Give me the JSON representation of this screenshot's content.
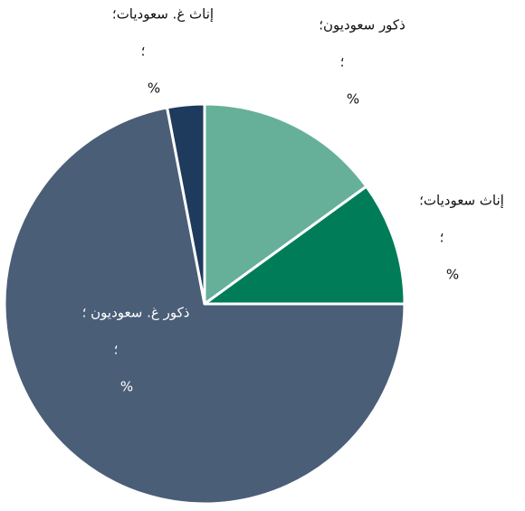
{
  "chart_data": {
    "type": "pie",
    "categories": [
      "ذكور سعوديون؛",
      "إناث سعوديات؛",
      "ذكور غ. سعوديون ؛",
      "إناث غ. سعوديات؛"
    ],
    "values": [
      15,
      10,
      72,
      3
    ],
    "colors": [
      "#66b09a",
      "#007c58",
      "#4a5e78",
      "#1e3a5c"
    ],
    "label_lines": [
      [
        "؛",
        "%"
      ],
      [
        "؛",
        "%"
      ],
      [
        "؛",
        "%"
      ],
      [
        "؛",
        "%"
      ]
    ]
  }
}
